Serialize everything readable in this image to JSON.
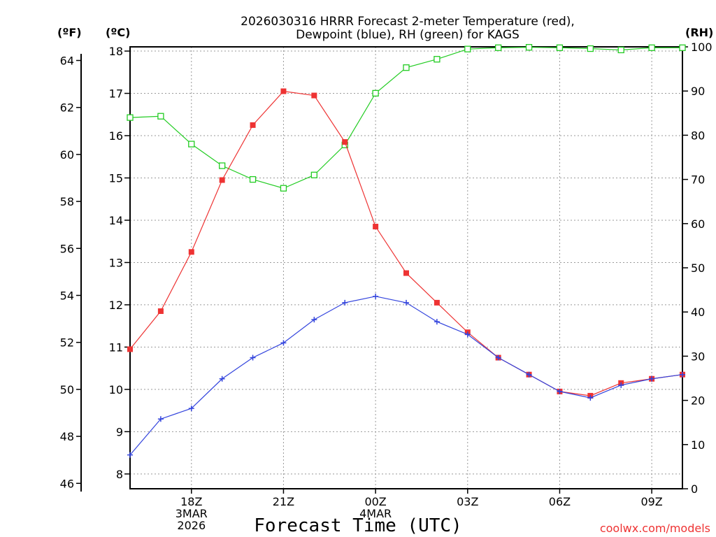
{
  "chart_data": {
    "type": "line",
    "title_lines": [
      "2026030316 HRRR Forecast 2-meter Temperature (red),",
      "Dewpoint (blue), RH (green) for KAGS"
    ],
    "xlabel": "Forecast Time (UTC)",
    "credit": "coolwx.com/models",
    "units": {
      "fahrenheit": "(ºF)",
      "celsius": "(ºC)",
      "rh": "(RH)"
    },
    "x_hours": [
      16,
      17,
      18,
      19,
      20,
      21,
      22,
      23,
      24,
      25,
      26,
      27,
      28,
      29,
      30,
      31,
      32,
      33,
      34
    ],
    "x_ticks": [
      {
        "hour": 18,
        "lines": [
          "18Z",
          "3MAR",
          "2026"
        ]
      },
      {
        "hour": 21,
        "lines": [
          "21Z"
        ]
      },
      {
        "hour": 24,
        "lines": [
          "00Z",
          "4MAR"
        ]
      },
      {
        "hour": 27,
        "lines": [
          "03Z"
        ]
      },
      {
        "hour": 30,
        "lines": [
          "06Z"
        ]
      },
      {
        "hour": 33,
        "lines": [
          "09Z"
        ]
      }
    ],
    "xlim": [
      16,
      34
    ],
    "ylim_c": [
      7.65,
      18.1
    ],
    "ylim_rh": [
      0,
      100
    ],
    "celsius_ticks": [
      8,
      9,
      10,
      11,
      12,
      13,
      14,
      15,
      16,
      17,
      18
    ],
    "fahrenheit_ticks": [
      46,
      48,
      50,
      52,
      54,
      56,
      58,
      60,
      62,
      64
    ],
    "rh_ticks": [
      0,
      10,
      20,
      30,
      40,
      50,
      60,
      70,
      80,
      90,
      100
    ],
    "colors": {
      "temperature": "#ee3333",
      "dewpoint": "#3344dd",
      "rh": "#22cc22",
      "grid": "#999999"
    },
    "series": [
      {
        "name": "Temperature",
        "unit": "C",
        "marker": "square-filled",
        "values": [
          10.95,
          11.85,
          13.25,
          14.95,
          16.25,
          17.05,
          16.95,
          15.85,
          13.85,
          12.75,
          12.05,
          11.35,
          10.75,
          10.35,
          9.95,
          9.85,
          10.15,
          10.25,
          10.35
        ]
      },
      {
        "name": "Dewpoint",
        "unit": "C",
        "marker": "plus",
        "values": [
          8.45,
          9.3,
          9.55,
          10.25,
          10.75,
          11.1,
          11.65,
          12.05,
          12.2,
          12.05,
          11.6,
          11.3,
          10.75,
          10.35,
          9.95,
          9.8,
          10.1,
          10.25,
          10.35
        ]
      },
      {
        "name": "RH",
        "unit": "%",
        "marker": "square-open",
        "values": [
          84,
          84.3,
          78,
          73.1,
          70,
          68,
          71,
          77.8,
          89.5,
          95.3,
          97.2,
          99.5,
          99.8,
          99.9,
          99.8,
          99.6,
          99.3,
          99.8,
          99.8
        ]
      }
    ]
  }
}
